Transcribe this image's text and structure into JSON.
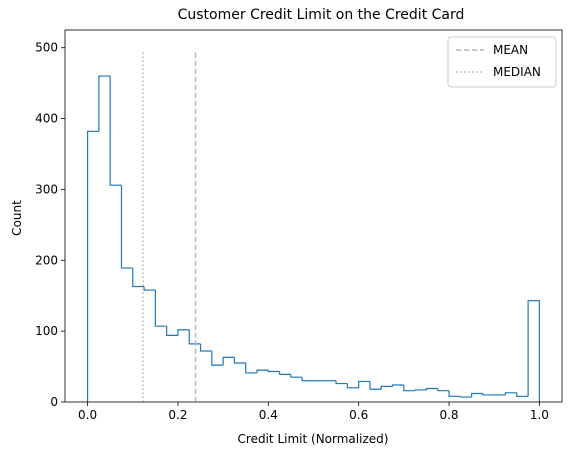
{
  "chart_data": {
    "type": "histogram",
    "title": "Customer Credit Limit on the Credit Card",
    "xlabel": "Credit Limit (Normalized)",
    "ylabel": "Count",
    "xlim": [
      -0.05,
      1.05
    ],
    "ylim": [
      0,
      525
    ],
    "xticks": [
      0.0,
      0.2,
      0.4,
      0.6,
      0.8,
      1.0
    ],
    "xtick_labels": [
      "0.0",
      "0.2",
      "0.4",
      "0.6",
      "0.8",
      "1.0"
    ],
    "yticks": [
      0,
      100,
      200,
      300,
      400,
      500
    ],
    "ytick_labels": [
      "0",
      "100",
      "200",
      "300",
      "400",
      "500"
    ],
    "bin_edges": [
      0.0,
      0.025,
      0.05,
      0.075,
      0.1,
      0.125,
      0.15,
      0.175,
      0.2,
      0.225,
      0.25,
      0.275,
      0.3,
      0.325,
      0.35,
      0.375,
      0.4,
      0.425,
      0.45,
      0.475,
      0.5,
      0.525,
      0.55,
      0.575,
      0.6,
      0.625,
      0.65,
      0.675,
      0.7,
      0.725,
      0.75,
      0.775,
      0.8,
      0.825,
      0.85,
      0.875,
      0.9,
      0.925,
      0.95,
      0.975,
      1.0
    ],
    "counts": [
      382,
      460,
      306,
      189,
      163,
      158,
      107,
      94,
      102,
      82,
      72,
      52,
      63,
      55,
      41,
      45,
      43,
      39,
      35,
      30,
      30,
      30,
      26,
      20,
      29,
      18,
      22,
      24,
      16,
      17,
      19,
      16,
      8,
      7,
      12,
      10,
      10,
      13,
      8,
      143
    ],
    "histtype": "step",
    "color": "#1f77b4",
    "reference_lines": [
      {
        "name": "MEAN",
        "x": 0.239,
        "ymax": 497,
        "style": "dashed",
        "color": "#b8b8b8"
      },
      {
        "name": "MEDIAN",
        "x": 0.123,
        "ymax": 497,
        "style": "dotted",
        "color": "#b8b8b8"
      }
    ],
    "legend": {
      "position": "upper-right",
      "entries": [
        "MEAN",
        "MEDIAN"
      ]
    },
    "grid": false
  }
}
